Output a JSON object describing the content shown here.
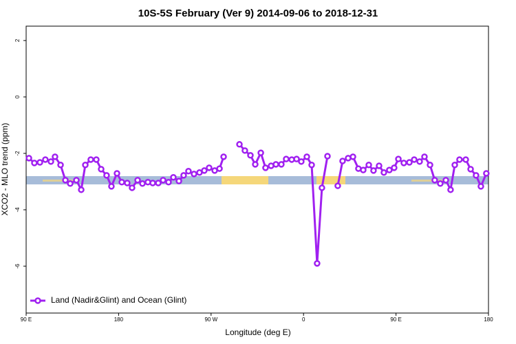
{
  "chart_data": {
    "type": "line",
    "title": "10S-5S February (Ver 9)   2014-09-06 to 2018-12-31",
    "x_label": "Longitude (deg E)",
    "y_label": "XCO2 - MLO trend (ppm)",
    "x": [
      92.7,
      98,
      103.4,
      108.7,
      114.1,
      118.1,
      123.5,
      128.2,
      132.9,
      138.9,
      143.6,
      147.6,
      152.9,
      158.3,
      163,
      168.3,
      173,
      178.4,
      183.1,
      188.4,
      193.1,
      198.5,
      203.2,
      208.5,
      213.2,
      218.6,
      223.3,
      228.6,
      233.3,
      238.7,
      243.3,
      248,
      253.4,
      258.7,
      263.4,
      268.1,
      273.5,
      278.2,
      282.2,
      290,
      297.6,
      302.9,
      308.3,
      313,
      318.4,
      323,
      328.4,
      333.1,
      338.4,
      343.1,
      348.5,
      353.2,
      357.8,
      363.2,
      367.9,
      373.2,
      377.9,
      383.3,
      388,
      393.3,
      398,
      403.4,
      408.1,
      413.4,
      418.1,
      423.5,
      428.1,
      433.5,
      438.2,
      443.5,
      448.2,
      452.3,
      457.6,
      463,
      467.7,
      473,
      477.7,
      483.1,
      487.7,
      493.1,
      498.5,
      503.1,
      507.2,
      511.8,
      517.9,
      522.6,
      527.9,
      532.6,
      537.9
    ],
    "series": [
      {
        "name": "Land (Nadir&Glint) and Ocean (Glint)",
        "color": "#a020f0",
        "values": [
          -2.17,
          -2.34,
          -2.32,
          -2.22,
          -2.29,
          -2.12,
          -2.41,
          -2.95,
          -3.07,
          -2.95,
          -3.29,
          -2.41,
          -2.22,
          -2.22,
          -2.56,
          -2.78,
          -3.17,
          -2.71,
          -3.02,
          -3.05,
          -3.22,
          -2.95,
          -3.07,
          -3.02,
          -3.05,
          -3.05,
          -2.95,
          -3.02,
          -2.85,
          -2.98,
          -2.78,
          -2.63,
          -2.73,
          -2.68,
          -2.61,
          -2.51,
          -2.61,
          -2.54,
          -2.12,
          null,
          -1.68,
          -1.9,
          -2.07,
          -2.39,
          -1.98,
          -2.51,
          -2.44,
          -2.39,
          -2.39,
          -2.2,
          -2.22,
          -2.2,
          -2.29,
          -2.12,
          -2.41,
          -5.9,
          -3.22,
          -2.1,
          null,
          -3.15,
          -2.27,
          -2.17,
          -2.12,
          -2.54,
          -2.59,
          -2.41,
          -2.61,
          -2.44,
          -2.68,
          -2.59,
          -2.51,
          -2.2,
          -2.34,
          -2.32,
          -2.22,
          -2.29,
          -2.12,
          -2.41,
          -2.95,
          -3.07,
          -2.95,
          -3.29,
          -2.41,
          -2.22,
          -2.22,
          -2.56,
          -2.78,
          -3.17,
          -2.71
        ]
      }
    ],
    "xlim": [
      90,
      540
    ],
    "xticks": [
      {
        "value": 90,
        "label": "90 E"
      },
      {
        "value": 180,
        "label": "180"
      },
      {
        "value": 270,
        "label": "90 W"
      },
      {
        "value": 360,
        "label": "0"
      },
      {
        "value": 450,
        "label": "90 E"
      },
      {
        "value": 540,
        "label": "180"
      }
    ],
    "ylim": [
      -7.66,
      2.51
    ],
    "yticks": [
      2,
      0,
      -2,
      -4,
      -6
    ],
    "legend": "bottom-left"
  }
}
